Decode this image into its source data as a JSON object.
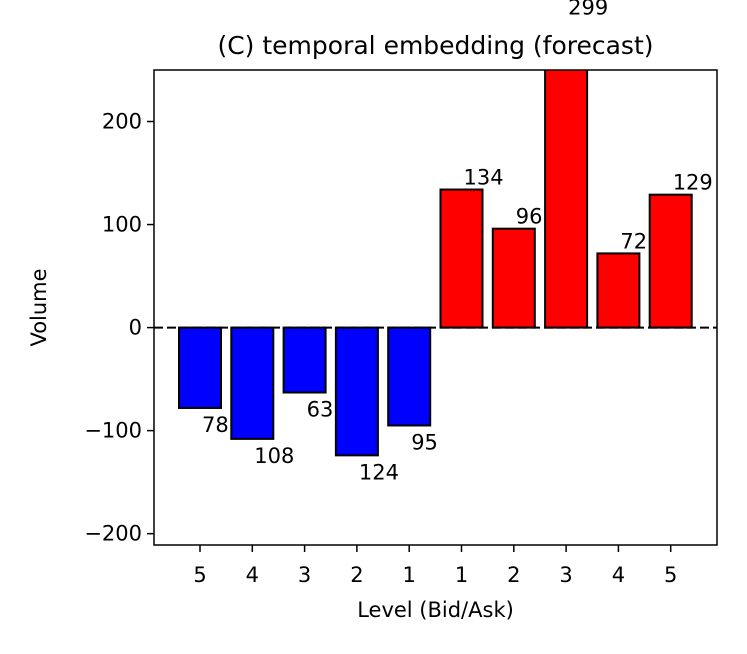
{
  "chart_data": {
    "type": "bar",
    "title": "(C) temporal embedding (forecast)",
    "xlabel": "Level (Bid/Ask)",
    "ylabel": "Volume",
    "ylim": [
      -211,
      250
    ],
    "yticks": [
      {
        "value": 200,
        "label": "200"
      },
      {
        "value": 100,
        "label": "100"
      },
      {
        "value": 0,
        "label": "0"
      },
      {
        "value": -100,
        "label": "−100"
      },
      {
        "value": -200,
        "label": "−200"
      }
    ],
    "categories": [
      "5",
      "4",
      "3",
      "2",
      "1",
      "1",
      "2",
      "3",
      "4",
      "5"
    ],
    "series": [
      {
        "name": "Bid",
        "color": "#0000ff",
        "values": [
          -78,
          -108,
          -63,
          -124,
          -95,
          null,
          null,
          null,
          null,
          null
        ]
      },
      {
        "name": "Ask",
        "color": "#ff0000",
        "values": [
          null,
          null,
          null,
          null,
          null,
          134,
          96,
          299,
          72,
          129
        ]
      }
    ],
    "data_labels": [
      "78",
      "108",
      "63",
      "124",
      "95",
      "134",
      "96",
      "299",
      "72",
      "129"
    ],
    "zero_line": "dashed",
    "grid": false,
    "legend": "none"
  }
}
